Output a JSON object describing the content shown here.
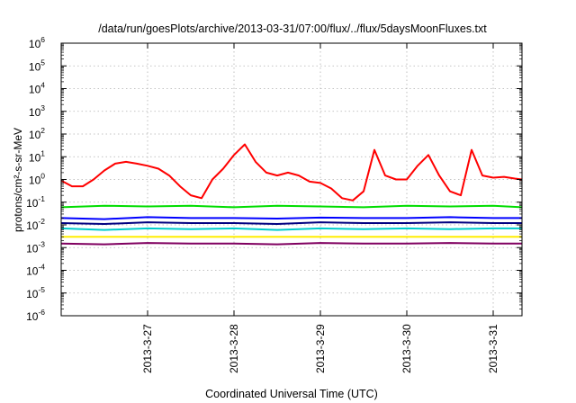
{
  "chart_data": {
    "type": "line",
    "title": "/data/run/goesPlots/archive/2013-03-31/07:00/flux/../flux/5daysMoonFluxes.txt",
    "xlabel": "Coordinated Universal Time (UTC)",
    "ylabel": "protons/cm²-s-sr-MeV",
    "y_scale": "log",
    "ylim": [
      1e-06,
      1000000.0
    ],
    "y_ticks": [
      {
        "base": "10",
        "exp": "-6"
      },
      {
        "base": "10",
        "exp": "-5"
      },
      {
        "base": "10",
        "exp": "-4"
      },
      {
        "base": "10",
        "exp": "-3"
      },
      {
        "base": "10",
        "exp": "-2"
      },
      {
        "base": "10",
        "exp": "-1"
      },
      {
        "base": "10",
        "exp": "0"
      },
      {
        "base": "10",
        "exp": "1"
      },
      {
        "base": "10",
        "exp": "2"
      },
      {
        "base": "10",
        "exp": "3"
      },
      {
        "base": "10",
        "exp": "4"
      },
      {
        "base": "10",
        "exp": "5"
      },
      {
        "base": "10",
        "exp": "6"
      }
    ],
    "xlim": [
      "2013-03-26 00:00",
      "2013-03-31 08:00"
    ],
    "x_ticks": [
      "2013-3-27",
      "2013-3-28",
      "2013-3-29",
      "2013-3-30",
      "2013-3-31"
    ],
    "grid": true,
    "series": [
      {
        "color": "#ff0000",
        "x": [
          "2013-03-26 00:00",
          "2013-03-26 03:00",
          "2013-03-26 06:00",
          "2013-03-26 09:00",
          "2013-03-26 12:00",
          "2013-03-26 15:00",
          "2013-03-26 18:00",
          "2013-03-26 21:00",
          "2013-03-27 00:00",
          "2013-03-27 03:00",
          "2013-03-27 06:00",
          "2013-03-27 09:00",
          "2013-03-27 12:00",
          "2013-03-27 15:00",
          "2013-03-27 18:00",
          "2013-03-27 21:00",
          "2013-03-28 00:00",
          "2013-03-28 03:00",
          "2013-03-28 06:00",
          "2013-03-28 09:00",
          "2013-03-28 12:00",
          "2013-03-28 15:00",
          "2013-03-28 18:00",
          "2013-03-28 21:00",
          "2013-03-29 00:00",
          "2013-03-29 03:00",
          "2013-03-29 06:00",
          "2013-03-29 09:00",
          "2013-03-29 12:00",
          "2013-03-29 15:00",
          "2013-03-29 18:00",
          "2013-03-29 21:00",
          "2013-03-30 00:00",
          "2013-03-30 03:00",
          "2013-03-30 06:00",
          "2013-03-30 09:00",
          "2013-03-30 12:00",
          "2013-03-30 15:00",
          "2013-03-30 18:00",
          "2013-03-30 21:00",
          "2013-03-31 00:00",
          "2013-03-31 03:00",
          "2013-03-31 06:00",
          "2013-03-31 08:00"
        ],
        "values": [
          0.9,
          0.5,
          0.5,
          1,
          2.5,
          5,
          6,
          5,
          4,
          3,
          1.5,
          0.5,
          0.2,
          0.15,
          1,
          3,
          12,
          35,
          6,
          2,
          1.5,
          2,
          1.5,
          0.8,
          0.7,
          0.4,
          0.15,
          0.12,
          0.3,
          20,
          1.5,
          1,
          1,
          4,
          12,
          1.5,
          0.3,
          0.2,
          20,
          1.5,
          1.2,
          1.3,
          1.1,
          1.0
        ]
      },
      {
        "color": "#00dd00",
        "x": [
          "2013-03-26 00:00",
          "2013-03-26 12:00",
          "2013-03-27 00:00",
          "2013-03-27 12:00",
          "2013-03-28 00:00",
          "2013-03-28 12:00",
          "2013-03-29 00:00",
          "2013-03-29 12:00",
          "2013-03-30 00:00",
          "2013-03-30 12:00",
          "2013-03-31 00:00",
          "2013-03-31 08:00"
        ],
        "values": [
          0.06,
          0.07,
          0.065,
          0.07,
          0.06,
          0.07,
          0.065,
          0.06,
          0.07,
          0.065,
          0.07,
          0.06
        ]
      },
      {
        "color": "#0000ff",
        "x": [
          "2013-03-26 00:00",
          "2013-03-26 12:00",
          "2013-03-27 00:00",
          "2013-03-27 12:00",
          "2013-03-28 00:00",
          "2013-03-28 12:00",
          "2013-03-29 00:00",
          "2013-03-29 12:00",
          "2013-03-30 00:00",
          "2013-03-30 12:00",
          "2013-03-31 00:00",
          "2013-03-31 08:00"
        ],
        "values": [
          0.02,
          0.018,
          0.022,
          0.02,
          0.02,
          0.019,
          0.021,
          0.02,
          0.02,
          0.022,
          0.02,
          0.02
        ]
      },
      {
        "color": "#000080",
        "x": [
          "2013-03-26 00:00",
          "2013-03-26 12:00",
          "2013-03-27 00:00",
          "2013-03-27 12:00",
          "2013-03-28 00:00",
          "2013-03-28 12:00",
          "2013-03-29 00:00",
          "2013-03-29 12:00",
          "2013-03-30 00:00",
          "2013-03-30 12:00",
          "2013-03-31 00:00",
          "2013-03-31 08:00"
        ],
        "values": [
          0.012,
          0.011,
          0.013,
          0.012,
          0.012,
          0.011,
          0.013,
          0.012,
          0.012,
          0.013,
          0.012,
          0.012
        ]
      },
      {
        "color": "#00cccc",
        "x": [
          "2013-03-26 00:00",
          "2013-03-26 12:00",
          "2013-03-27 00:00",
          "2013-03-27 12:00",
          "2013-03-28 00:00",
          "2013-03-28 12:00",
          "2013-03-29 00:00",
          "2013-03-29 12:00",
          "2013-03-30 00:00",
          "2013-03-30 12:00",
          "2013-03-31 00:00",
          "2013-03-31 08:00"
        ],
        "values": [
          0.007,
          0.006,
          0.007,
          0.0065,
          0.007,
          0.006,
          0.007,
          0.0065,
          0.007,
          0.0065,
          0.007,
          0.007
        ]
      },
      {
        "color": "#ffee00",
        "x": [
          "2013-03-26 00:00",
          "2013-03-26 12:00",
          "2013-03-27 00:00",
          "2013-03-27 12:00",
          "2013-03-28 00:00",
          "2013-03-28 12:00",
          "2013-03-29 00:00",
          "2013-03-29 12:00",
          "2013-03-30 00:00",
          "2013-03-30 12:00",
          "2013-03-31 00:00",
          "2013-03-31 08:00"
        ],
        "values": [
          0.003,
          0.003,
          0.003,
          0.003,
          0.003,
          0.003,
          0.003,
          0.003,
          0.003,
          0.003,
          0.003,
          0.003
        ]
      },
      {
        "color": "#800060",
        "x": [
          "2013-03-26 00:00",
          "2013-03-26 12:00",
          "2013-03-27 00:00",
          "2013-03-27 12:00",
          "2013-03-28 00:00",
          "2013-03-28 12:00",
          "2013-03-29 00:00",
          "2013-03-29 12:00",
          "2013-03-30 00:00",
          "2013-03-30 12:00",
          "2013-03-31 00:00",
          "2013-03-31 08:00"
        ],
        "values": [
          0.0015,
          0.0014,
          0.0016,
          0.0015,
          0.0015,
          0.0014,
          0.0016,
          0.0015,
          0.0015,
          0.0016,
          0.0015,
          0.0015
        ]
      }
    ]
  }
}
